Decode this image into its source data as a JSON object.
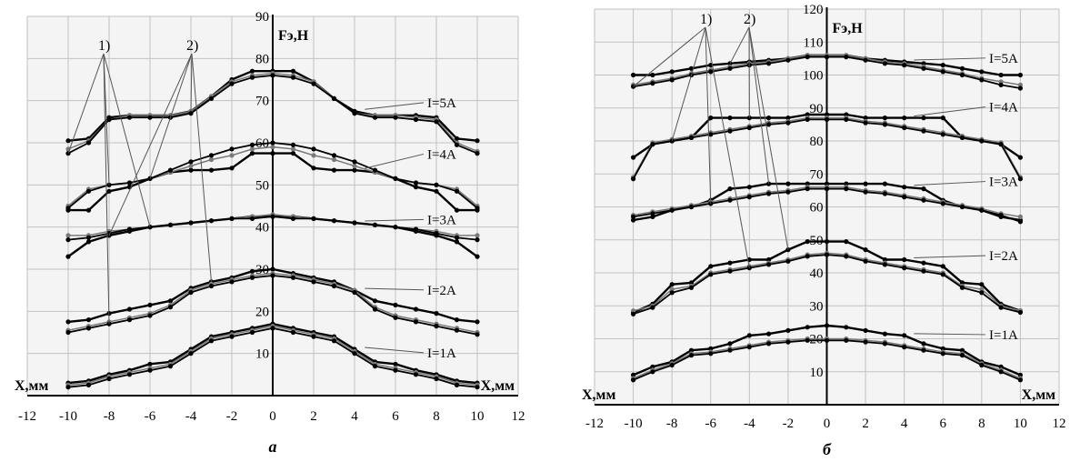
{
  "chart_data": [
    {
      "type": "line",
      "panel_label": "a",
      "xlabel": "X,мм",
      "xlabel_right": "X,мм",
      "ylabel": "Fэ,Н",
      "xlim": [
        -12,
        12
      ],
      "ylim": [
        0,
        90
      ],
      "xticks": [
        -12,
        -10,
        -8,
        -6,
        -4,
        -2,
        0,
        2,
        4,
        6,
        8,
        10,
        12
      ],
      "yticks": [
        10,
        20,
        30,
        40,
        50,
        60,
        70,
        80,
        90
      ],
      "group_markers": [
        "1)",
        "2)"
      ],
      "x": [
        -10,
        -9,
        -8,
        -7,
        -6,
        -5,
        -4,
        -3,
        -2,
        -1,
        0,
        1,
        2,
        3,
        4,
        5,
        6,
        7,
        8,
        9,
        10
      ],
      "series": [
        {
          "name": "I=5A",
          "curves": [
            [
              60.5,
              61,
              66,
              66.5,
              66.5,
              66.5,
              67.5,
              71,
              75,
              77,
              77,
              77,
              74.5,
              70.5,
              67.5,
              66.5,
              66.5,
              66.5,
              66,
              61,
              60.5
            ],
            [
              58.5,
              60.5,
              65.5,
              66.5,
              66.5,
              66.5,
              67.5,
              71,
              74.5,
              76,
              76.5,
              76,
              74.5,
              70.5,
              67,
              66.5,
              66.5,
              66,
              65.5,
              60,
              58
            ],
            [
              57.5,
              60,
              65.5,
              66,
              66,
              66,
              67,
              70.5,
              74,
              75.5,
              76,
              75.5,
              74,
              70.5,
              67,
              66,
              66,
              65.5,
              65,
              59.5,
              57.5
            ]
          ]
        },
        {
          "name": "I=4A",
          "curves": [
            [
              44,
              44,
              48.5,
              49.5,
              51.5,
              53,
              53.5,
              53.5,
              54,
              57.5,
              57.5,
              57.5,
              54,
              53.5,
              53.5,
              53,
              51.5,
              49.5,
              48.5,
              44,
              44
            ],
            [
              45,
              49,
              50,
              50.5,
              51.5,
              53,
              54.5,
              56,
              57,
              58.5,
              59,
              58.5,
              57,
              56,
              54.5,
              53,
              51.5,
              50.5,
              50,
              49,
              45
            ],
            [
              44.5,
              48.5,
              50,
              50.5,
              51.5,
              53.5,
              55.5,
              57,
              58.5,
              59.5,
              60,
              59.5,
              58.5,
              57,
              55.5,
              53.5,
              51.5,
              50.5,
              50,
              48.5,
              44.5
            ]
          ]
        },
        {
          "name": "I=3A",
          "curves": [
            [
              33,
              36.5,
              38,
              39,
              40,
              40.5,
              41,
              41.5,
              42,
              42.5,
              42.5,
              42.5,
              42,
              41.5,
              41,
              40.5,
              40,
              39,
              38,
              36.5,
              33
            ],
            [
              38,
              38,
              39,
              39.5,
              40,
              40.5,
              41,
              41.5,
              42,
              42.5,
              43,
              42.5,
              42,
              41.5,
              41,
              40.5,
              40,
              39.5,
              39,
              38,
              38
            ],
            [
              37,
              37.5,
              38.5,
              39.5,
              40,
              40.5,
              41,
              41.5,
              42,
              42,
              42.5,
              42,
              42,
              41.5,
              41,
              40.5,
              40,
              39.5,
              38.5,
              37.5,
              37
            ]
          ]
        },
        {
          "name": "I=2A",
          "curves": [
            [
              17.5,
              18,
              19.5,
              20.5,
              21.5,
              22.5,
              25.5,
              27,
              28,
              29.5,
              30,
              29,
              28,
              27,
              25,
              22.5,
              21.5,
              20.5,
              19.5,
              18,
              17.5
            ],
            [
              15.5,
              16.5,
              17.5,
              18.5,
              19.5,
              21.5,
              25,
              26.5,
              27.5,
              28.5,
              29,
              28.5,
              27.5,
              26.5,
              25,
              21,
              19,
              18,
              17,
              16,
              15
            ],
            [
              15,
              16,
              17,
              18,
              19,
              21,
              24.5,
              26,
              27,
              28,
              28.5,
              28,
              27,
              26,
              24.5,
              20.5,
              18.5,
              17.5,
              16.5,
              15.5,
              14.5
            ]
          ]
        },
        {
          "name": "I=1A",
          "curves": [
            [
              3,
              3.5,
              5,
              6,
              7.5,
              8,
              11,
              14,
              15,
              16,
              17,
              16,
              15,
              14,
              11,
              8,
              7.5,
              6,
              5,
              3.5,
              3
            ],
            [
              2.5,
              3,
              4.5,
              5.5,
              6.5,
              7.5,
              10.5,
              13.5,
              14.5,
              15.5,
              16.5,
              15.5,
              14.5,
              13.5,
              10.5,
              7.5,
              6.5,
              5.5,
              4.5,
              3,
              2.5
            ],
            [
              2,
              2.5,
              4,
              5,
              6,
              7,
              10,
              13,
              14,
              15,
              16,
              15,
              14,
              13,
              10,
              7,
              6,
              5,
              4,
              2.5,
              2
            ]
          ]
        }
      ]
    },
    {
      "type": "line",
      "panel_label": "б",
      "xlabel": "X,мм",
      "xlabel_right": "X,мм",
      "ylabel": "Fэ,Н",
      "xlim": [
        -12,
        12
      ],
      "ylim": [
        0,
        120
      ],
      "xticks": [
        -12,
        -10,
        -8,
        -6,
        -4,
        -2,
        0,
        2,
        4,
        6,
        8,
        10,
        12
      ],
      "yticks": [
        10,
        20,
        30,
        40,
        50,
        60,
        70,
        80,
        90,
        100,
        110,
        120
      ],
      "group_markers": [
        "1)",
        "2)"
      ],
      "x": [
        -10,
        -9,
        -8,
        -7,
        -6,
        -5,
        -4,
        -3,
        -2,
        -1,
        0,
        1,
        2,
        3,
        4,
        5,
        6,
        7,
        8,
        9,
        10
      ],
      "series": [
        {
          "name": "I=5A",
          "curves": [
            [
              100,
              100,
              101,
              102,
              103,
              103.5,
              104,
              104.5,
              105,
              106,
              106,
              106,
              105,
              104.5,
              104,
              103.5,
              103,
              102,
              101,
              100,
              100
            ],
            [
              97,
              98,
              99,
              100.5,
              101.5,
              102.5,
              103.5,
              104,
              105,
              106,
              106,
              106,
              105,
              104,
              103.5,
              102.5,
              101.5,
              100.5,
              99,
              98,
              97
            ],
            [
              96.5,
              97.5,
              98.5,
              100,
              101,
              102,
              103,
              103.5,
              104.5,
              105.5,
              105.5,
              105.5,
              104.5,
              103.5,
              103,
              102,
              101,
              100,
              98.5,
              97,
              96
            ]
          ]
        },
        {
          "name": "I=4A",
          "curves": [
            [
              75,
              79,
              80,
              81,
              87,
              87,
              87,
              87,
              87,
              88,
              88,
              88,
              87,
              87,
              87,
              87,
              87,
              81,
              80,
              79,
              75
            ],
            [
              69,
              79.5,
              80.5,
              81.5,
              82.5,
              83.5,
              84.5,
              85.5,
              86,
              87,
              87,
              87,
              86,
              85.5,
              84.5,
              83.5,
              82.5,
              81.5,
              80.5,
              79.5,
              69
            ],
            [
              68.5,
              79,
              80,
              81,
              82,
              83,
              84,
              85,
              85.5,
              86.5,
              86.5,
              86.5,
              85.5,
              85,
              84,
              83,
              82,
              81,
              80,
              79,
              68.5
            ]
          ]
        },
        {
          "name": "I=3A",
          "curves": [
            [
              56,
              57,
              59,
              60,
              62,
              65.5,
              66,
              67,
              67,
              67,
              67,
              67,
              67,
              67,
              66,
              65.5,
              62,
              60,
              59,
              57,
              56
            ],
            [
              57.5,
              58.5,
              59.5,
              60.5,
              61.5,
              62.5,
              63.5,
              64.5,
              65,
              66,
              66,
              66,
              65,
              64.5,
              63.5,
              62.5,
              61.5,
              60.5,
              59.5,
              58,
              57
            ],
            [
              57,
              58,
              59,
              60,
              61,
              62,
              63,
              64,
              64.5,
              65.5,
              65.5,
              65.5,
              64.5,
              64,
              63,
              62,
              61,
              60,
              59,
              57.5,
              55.5
            ]
          ]
        },
        {
          "name": "I=2A",
          "curves": [
            [
              28,
              30.5,
              36.5,
              37,
              42,
              43,
              44,
              44,
              47,
              49.5,
              49.5,
              49.5,
              47,
              44,
              44,
              43,
              42,
              37,
              36.5,
              30.5,
              28.5
            ],
            [
              28.5,
              30,
              35,
              36,
              40,
              41,
              42,
              43,
              44,
              45.5,
              46,
              45.5,
              44,
              43,
              42,
              41,
              40,
              36,
              35,
              30,
              28.5
            ],
            [
              27.5,
              29.5,
              34,
              35.5,
              39.5,
              40.5,
              41.5,
              42.5,
              43.5,
              45,
              45.5,
              45,
              43.5,
              42.5,
              41.5,
              40.5,
              39.5,
              35.5,
              34,
              29.5,
              28
            ]
          ]
        },
        {
          "name": "I=1A",
          "curves": [
            [
              9,
              11.5,
              13,
              16.5,
              17,
              18.5,
              21,
              21.5,
              22.5,
              23.5,
              24,
              23.5,
              22.5,
              21.5,
              21,
              18.5,
              17,
              16.5,
              13,
              11.5,
              9
            ],
            [
              8,
              10.5,
              12.5,
              15.5,
              16,
              17,
              18,
              19,
              19.5,
              20,
              20,
              20,
              19.5,
              19,
              18,
              17,
              16,
              15.5,
              12.5,
              10.5,
              8
            ],
            [
              7.5,
              10,
              12,
              15,
              15.5,
              16.5,
              17.5,
              18.5,
              19,
              19.5,
              19.5,
              19.5,
              19,
              18.5,
              17.5,
              16.5,
              15.5,
              15,
              12,
              10,
              7.5
            ]
          ]
        }
      ]
    }
  ]
}
